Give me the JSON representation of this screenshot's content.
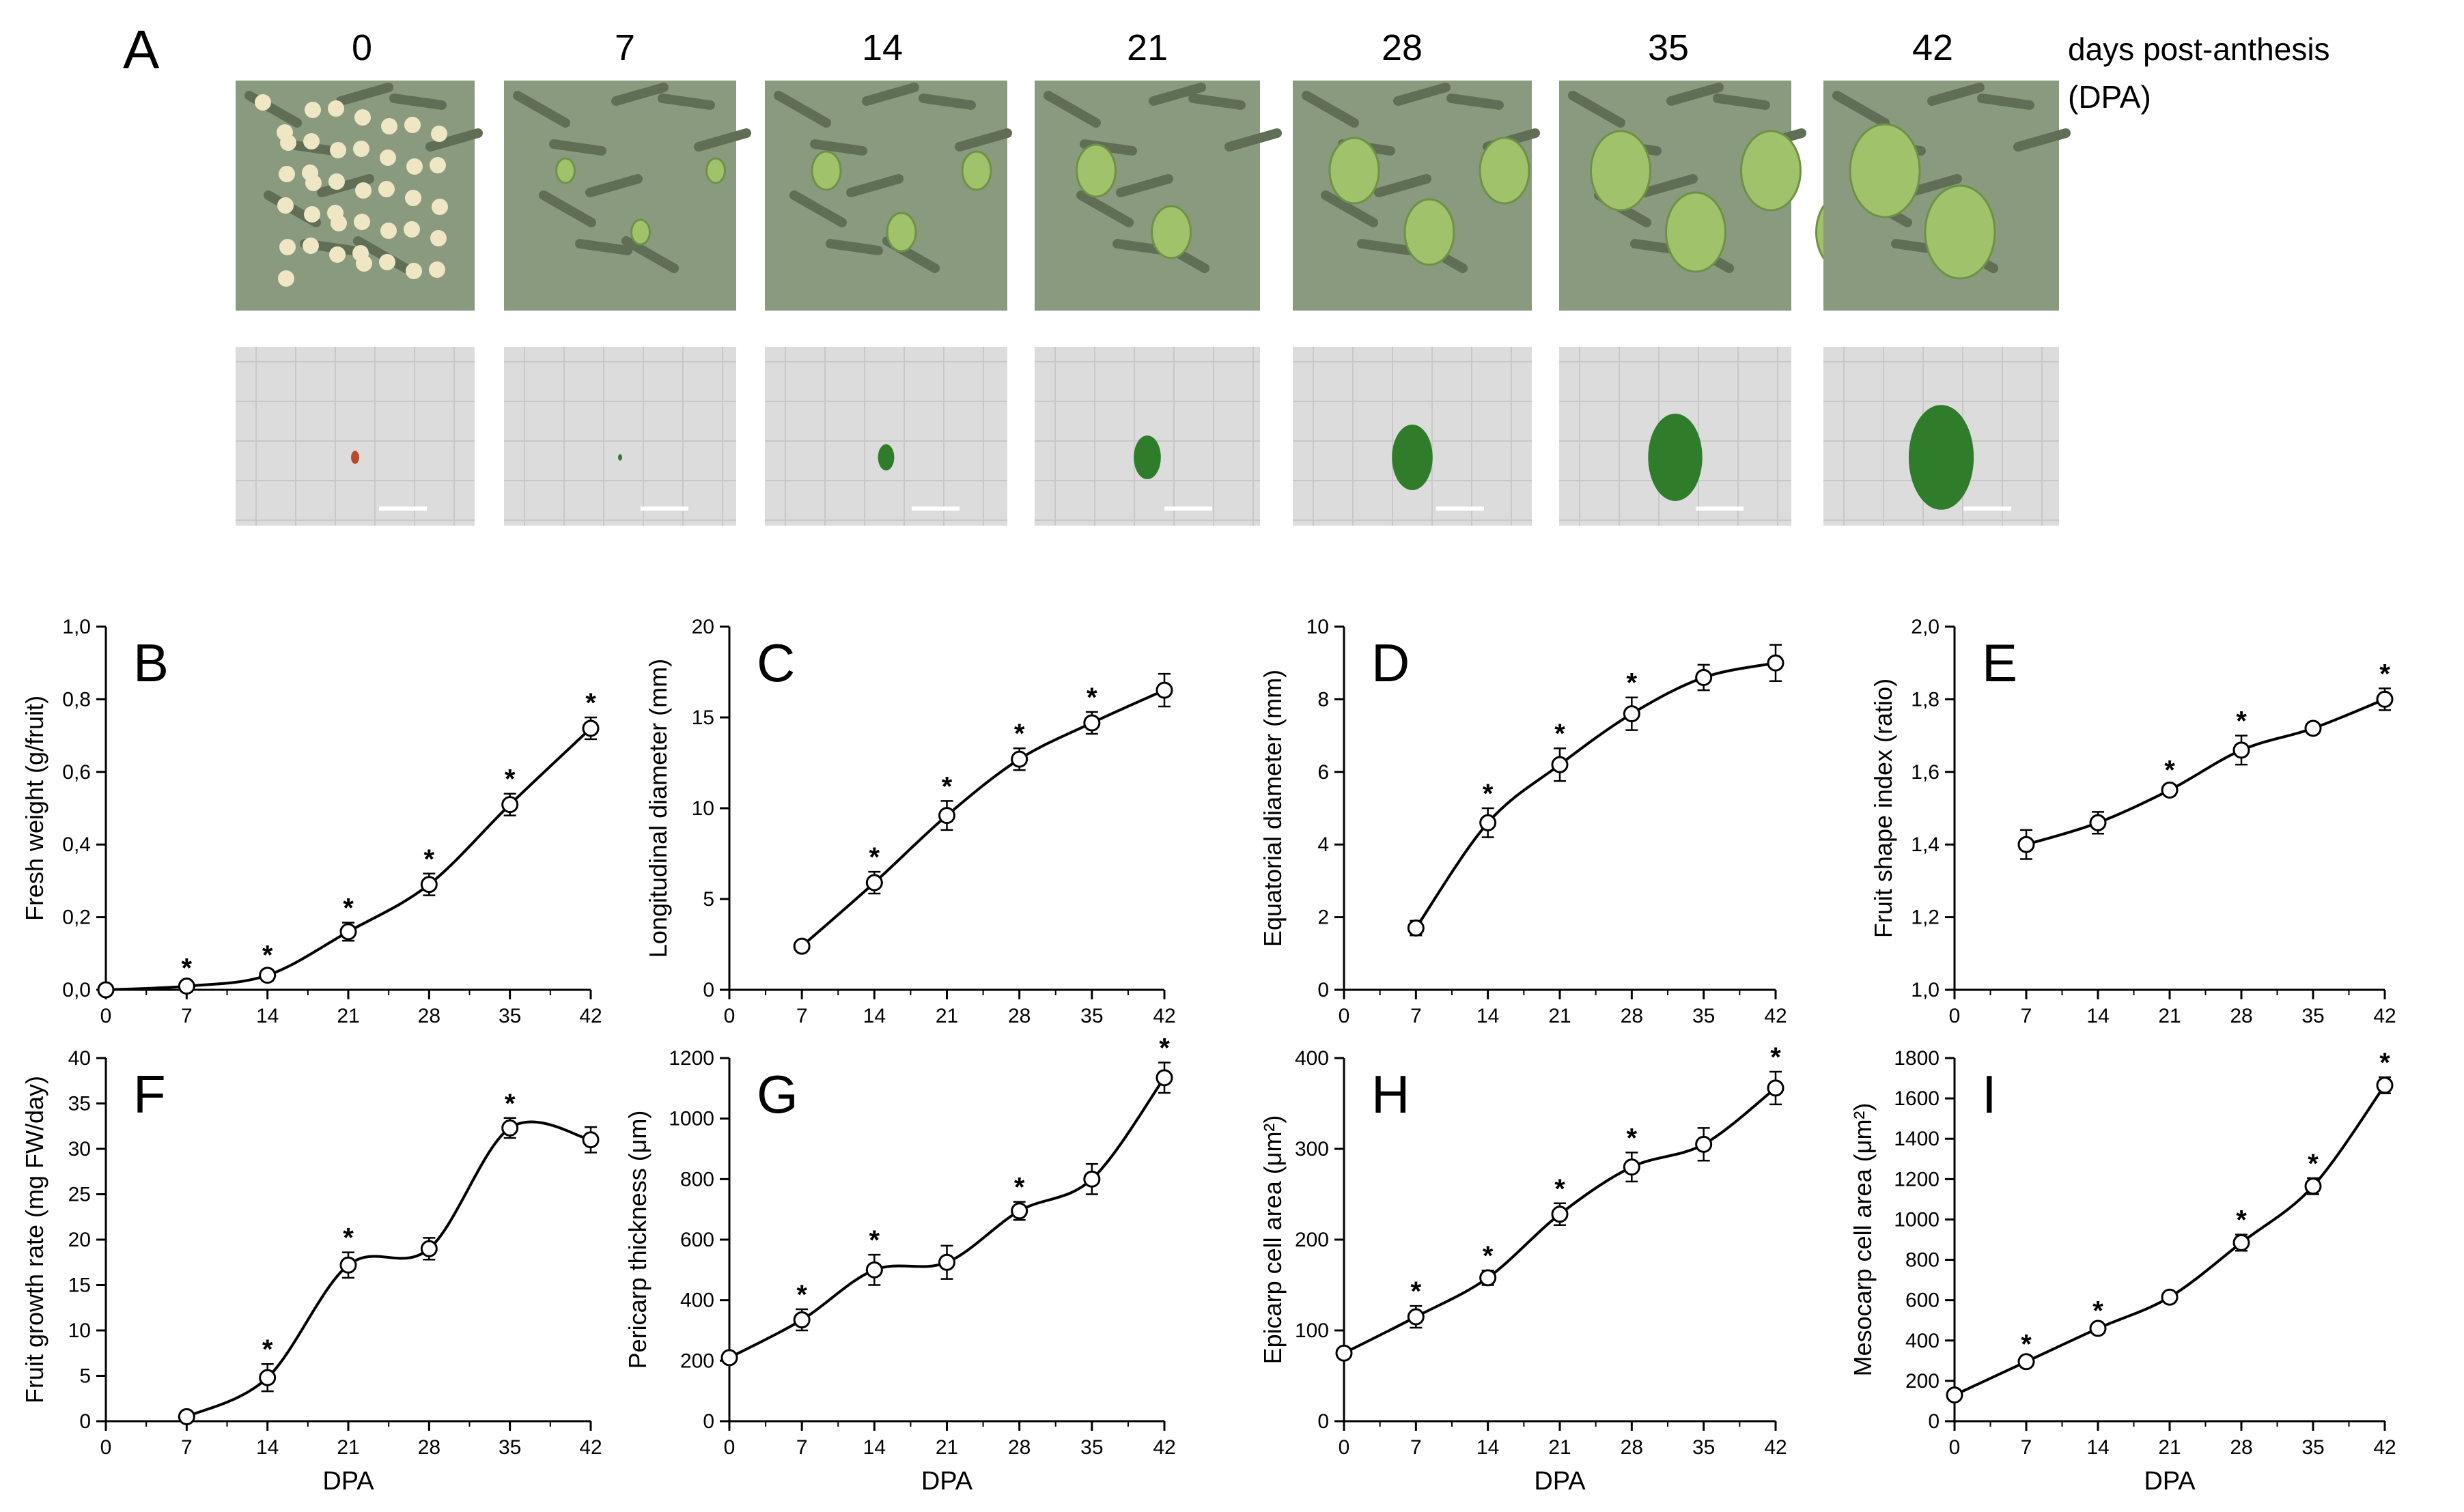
{
  "panel_a": {
    "label": "A",
    "days": [
      "0",
      "7",
      "14",
      "21",
      "28",
      "35",
      "42"
    ],
    "unit_line1": "days post-anthesis",
    "unit_line2": "(DPA)",
    "fruit_size_fraction": [
      0.06,
      0.03,
      0.12,
      0.2,
      0.3,
      0.4,
      0.48
    ],
    "colors": {
      "foliage": "#8a9a7e",
      "fruit_green": "#2f7d2a",
      "flower": "#efe6c4",
      "paper": "#dcdcdc",
      "scalebar": "#ffffff"
    }
  },
  "chart_data": [
    {
      "id": "B",
      "label": "B",
      "type": "line",
      "ylabel": "Fresh weight (g/fruit)",
      "xlabel": "",
      "xlim": [
        0,
        42
      ],
      "ylim": [
        0,
        1.0
      ],
      "xticks": [
        "0",
        "7",
        "14",
        "21",
        "28",
        "35",
        "42"
      ],
      "yticks": [
        "0,0",
        "0,2",
        "0,4",
        "0,6",
        "0,8",
        "1,0"
      ],
      "x": [
        0,
        7,
        14,
        21,
        28,
        35,
        42
      ],
      "y": [
        0.0,
        0.01,
        0.04,
        0.16,
        0.29,
        0.51,
        0.72
      ],
      "err": [
        0.005,
        0.01,
        0.015,
        0.025,
        0.03,
        0.03,
        0.03
      ],
      "star": [
        false,
        true,
        true,
        true,
        true,
        true,
        true
      ]
    },
    {
      "id": "C",
      "label": "C",
      "type": "line",
      "ylabel": "Longitudinal diameter (mm)",
      "xlabel": "",
      "xlim": [
        0,
        42
      ],
      "ylim": [
        0,
        20
      ],
      "xticks": [
        "0",
        "7",
        "14",
        "21",
        "28",
        "35",
        "42"
      ],
      "yticks": [
        "0",
        "5",
        "10",
        "15",
        "20"
      ],
      "x": [
        7,
        14,
        21,
        28,
        35,
        42
      ],
      "y": [
        2.4,
        5.9,
        9.6,
        12.7,
        14.7,
        16.5
      ],
      "err": [
        0.2,
        0.6,
        0.8,
        0.6,
        0.6,
        0.9
      ],
      "star": [
        false,
        true,
        true,
        true,
        true,
        false
      ]
    },
    {
      "id": "D",
      "label": "D",
      "type": "line",
      "ylabel": "Equatorial diameter (mm)",
      "xlabel": "",
      "xlim": [
        0,
        42
      ],
      "ylim": [
        0,
        10
      ],
      "xticks": [
        "0",
        "7",
        "14",
        "21",
        "28",
        "35",
        "42"
      ],
      "yticks": [
        "0",
        "2",
        "4",
        "6",
        "8",
        "10"
      ],
      "x": [
        7,
        14,
        21,
        28,
        35,
        42
      ],
      "y": [
        1.7,
        4.6,
        6.2,
        7.6,
        8.6,
        9.0
      ],
      "err": [
        0.2,
        0.4,
        0.45,
        0.45,
        0.35,
        0.5
      ],
      "star": [
        false,
        true,
        true,
        true,
        false,
        false
      ]
    },
    {
      "id": "E",
      "label": "E",
      "type": "line",
      "ylabel": "Fruit shape index (ratio)",
      "xlabel": "",
      "xlim": [
        0,
        42
      ],
      "ylim": [
        1.0,
        2.0
      ],
      "xticks": [
        "0",
        "7",
        "14",
        "21",
        "28",
        "35",
        "42"
      ],
      "yticks": [
        "1,0",
        "1,2",
        "1,4",
        "1,6",
        "1,8",
        "2,0"
      ],
      "x": [
        7,
        14,
        21,
        28,
        35,
        42
      ],
      "y": [
        1.4,
        1.46,
        1.55,
        1.66,
        1.72,
        1.8
      ],
      "err": [
        0.04,
        0.03,
        0.015,
        0.04,
        0.015,
        0.03
      ],
      "star": [
        false,
        false,
        true,
        true,
        false,
        true
      ]
    },
    {
      "id": "F",
      "label": "F",
      "type": "line",
      "ylabel": "Fruit growth rate (mg FW/day)",
      "xlabel": "DPA",
      "xlim": [
        0,
        42
      ],
      "ylim": [
        0,
        40
      ],
      "xticks": [
        "0",
        "7",
        "14",
        "21",
        "28",
        "35",
        "42"
      ],
      "yticks": [
        "0",
        "5",
        "10",
        "15",
        "20",
        "25",
        "30",
        "35",
        "40"
      ],
      "x": [
        7,
        14,
        21,
        28,
        35,
        42
      ],
      "y": [
        0.5,
        4.8,
        17.2,
        19.0,
        32.3,
        31.0
      ],
      "err": [
        0.4,
        1.5,
        1.4,
        1.2,
        1.1,
        1.4
      ],
      "star": [
        false,
        true,
        true,
        false,
        true,
        false
      ]
    },
    {
      "id": "G",
      "label": "G",
      "type": "line",
      "ylabel": "Pericarp thickness (μm)",
      "xlabel": "DPA",
      "xlim": [
        0,
        42
      ],
      "ylim": [
        0,
        1200
      ],
      "xticks": [
        "0",
        "7",
        "14",
        "21",
        "28",
        "35",
        "42"
      ],
      "yticks": [
        "0",
        "200",
        "400",
        "600",
        "800",
        "1000",
        "1200"
      ],
      "x": [
        0,
        7,
        14,
        21,
        28,
        35,
        42
      ],
      "y": [
        210,
        335,
        500,
        525,
        695,
        800,
        1135
      ],
      "err": [
        10,
        35,
        50,
        55,
        30,
        50,
        50
      ],
      "star": [
        false,
        true,
        true,
        false,
        true,
        false,
        true
      ]
    },
    {
      "id": "H",
      "label": "H",
      "type": "line",
      "ylabel": "Epicarp cell area (μm²)",
      "xlabel": "DPA",
      "xlim": [
        0,
        42
      ],
      "ylim": [
        0,
        400
      ],
      "xticks": [
        "0",
        "7",
        "14",
        "21",
        "28",
        "35",
        "42"
      ],
      "yticks": [
        "0",
        "100",
        "200",
        "300",
        "400"
      ],
      "x": [
        0,
        7,
        14,
        21,
        28,
        35,
        42
      ],
      "y": [
        75,
        115,
        158,
        228,
        280,
        305,
        367
      ],
      "err": [
        4,
        12,
        8,
        12,
        16,
        18,
        18
      ],
      "star": [
        false,
        true,
        true,
        true,
        true,
        false,
        true
      ]
    },
    {
      "id": "I",
      "label": "I",
      "type": "line",
      "ylabel": "Mesocarp cell area (μm²)",
      "xlabel": "DPA",
      "xlim": [
        0,
        42
      ],
      "ylim": [
        0,
        1800
      ],
      "xticks": [
        "0",
        "7",
        "14",
        "21",
        "28",
        "35",
        "42"
      ],
      "yticks": [
        "0",
        "200",
        "400",
        "600",
        "800",
        "1000",
        "1200",
        "1400",
        "1600",
        "1800"
      ],
      "x": [
        0,
        7,
        14,
        21,
        28,
        35,
        42
      ],
      "y": [
        130,
        295,
        460,
        615,
        885,
        1165,
        1665
      ],
      "err": [
        10,
        15,
        15,
        15,
        40,
        40,
        40
      ],
      "star": [
        false,
        true,
        true,
        false,
        true,
        true,
        true
      ]
    }
  ]
}
